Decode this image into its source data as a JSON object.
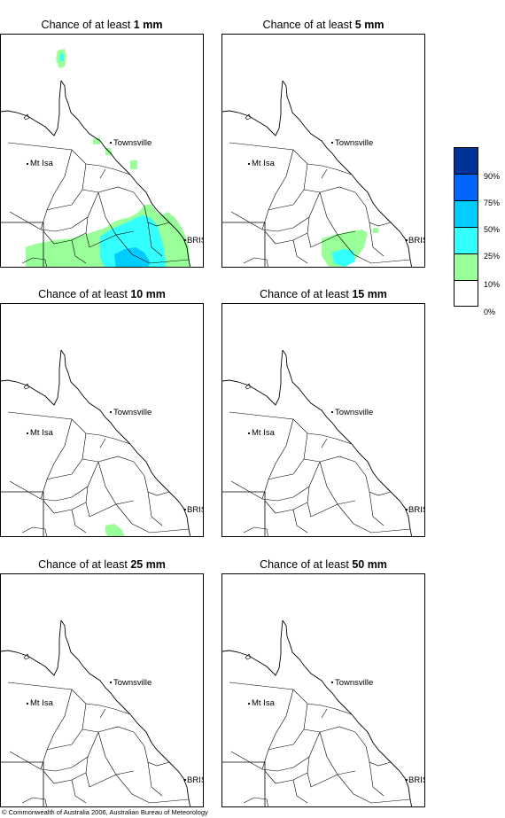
{
  "panels": [
    {
      "prefix": "Chance of at least ",
      "amount": "1 mm",
      "fill": "p1"
    },
    {
      "prefix": "Chance of at least ",
      "amount": "5 mm",
      "fill": "p5"
    },
    {
      "prefix": "Chance of at least ",
      "amount": "10 mm",
      "fill": "p10"
    },
    {
      "prefix": "Chance of at least ",
      "amount": "15 mm",
      "fill": "none"
    },
    {
      "prefix": "Chance of at least ",
      "amount": "25 mm",
      "fill": "none"
    },
    {
      "prefix": "Chance of at least ",
      "amount": "50 mm",
      "fill": "none"
    }
  ],
  "places": {
    "townsville": "Townsville",
    "mt_isa": "Mt Isa",
    "bris": "BRIS"
  },
  "legend": {
    "labels": [
      "90%",
      "75%",
      "50%",
      "25%",
      "10%",
      "0%"
    ],
    "colors": [
      "#003399",
      "#0066ff",
      "#00ccff",
      "#33ffff",
      "#99ff99",
      "#ffffff"
    ]
  },
  "colors": {
    "band_10_25": "#99ff99",
    "band_25_50": "#33ffff",
    "band_50_75": "#00ccff",
    "band_75_90": "#0066ff",
    "outline": "#000000"
  },
  "copyright": "© Commonwealth of Australia 2006, Australian Bureau of Meteorology"
}
